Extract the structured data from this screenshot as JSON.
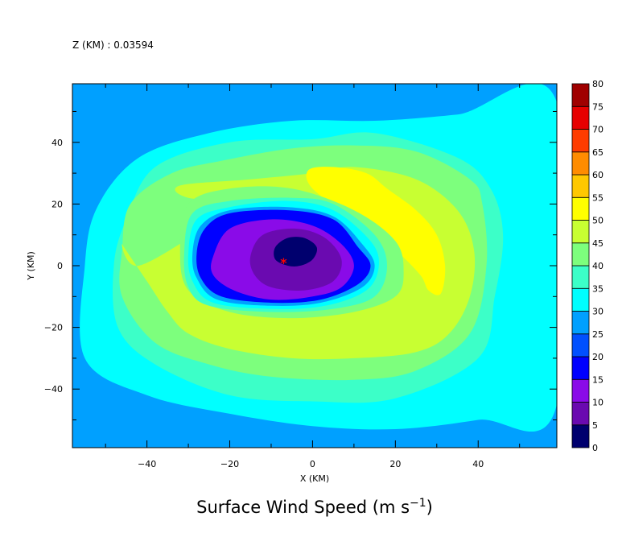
{
  "chart_data": {
    "type": "heatmap",
    "subtype": "filled-contour",
    "header": "Z (KM) : 0.03594",
    "title_text": "Surface Wind Speed (m s",
    "title_sup": "−1",
    "title_close": ")",
    "xlabel": "X (KM)",
    "ylabel": "Y (KM)",
    "xlim": [
      -58,
      59
    ],
    "ylim": [
      -59,
      59
    ],
    "xticks_major": [
      -40,
      -20,
      0,
      20,
      40
    ],
    "xticks_minor": [
      -50,
      -30,
      -10,
      10,
      30,
      50
    ],
    "yticks_major": [
      -40,
      -20,
      0,
      20,
      40
    ],
    "yticks_minor": [
      -50,
      -30,
      -10,
      10,
      30,
      50
    ],
    "x_tick_labels": [
      "−40",
      "−20",
      "0",
      "20",
      "40"
    ],
    "y_tick_labels": [
      "−40",
      "−20",
      "0",
      "20",
      "40"
    ],
    "colorbar": {
      "levels": [
        0,
        5,
        10,
        15,
        20,
        25,
        30,
        35,
        40,
        45,
        50,
        55,
        60,
        65,
        70,
        75,
        80
      ],
      "level_labels": [
        "0",
        "5",
        "10",
        "15",
        "20",
        "25",
        "30",
        "35",
        "40",
        "45",
        "50",
        "55",
        "60",
        "65",
        "70",
        "75",
        "80"
      ],
      "colors": [
        "#00006e",
        "#6a0ab0",
        "#8a0be8",
        "#0000ff",
        "#0050ff",
        "#00a0ff",
        "#00ffff",
        "#3cffc8",
        "#7dff7d",
        "#c8ff32",
        "#ffff00",
        "#ffc800",
        "#ff8c00",
        "#ff3c00",
        "#e60000",
        "#a00000"
      ]
    },
    "center_marker": {
      "x": -7,
      "y": 1,
      "symbol": "*",
      "color": "#ff0000"
    },
    "contours": [
      {
        "level": 20,
        "pts": [
          [
            -58,
            59
          ],
          [
            -48,
            59
          ],
          [
            -57,
            42
          ],
          [
            -58,
            40
          ]
        ]
      },
      {
        "level": 25,
        "pts": [
          [
            -58,
            59
          ],
          [
            59,
            59
          ],
          [
            59,
            -47
          ],
          [
            40,
            -55
          ],
          [
            20,
            -59
          ],
          [
            -20,
            -59
          ],
          [
            -40,
            -50
          ],
          [
            -58,
            -40
          ]
        ]
      },
      {
        "level": 30,
        "pts": [
          [
            -52,
            19
          ],
          [
            -42,
            35
          ],
          [
            -25,
            43
          ],
          [
            -5,
            47
          ],
          [
            15,
            47
          ],
          [
            35,
            49
          ],
          [
            59,
            53
          ],
          [
            59,
            -45
          ],
          [
            40,
            -50
          ],
          [
            20,
            -53
          ],
          [
            0,
            -52
          ],
          [
            -20,
            -48
          ],
          [
            -40,
            -42
          ],
          [
            -55,
            -30
          ],
          [
            -55,
            0
          ]
        ]
      },
      {
        "level": 35,
        "pts": [
          [
            -45,
            15
          ],
          [
            -38,
            32
          ],
          [
            -20,
            40
          ],
          [
            0,
            41
          ],
          [
            15,
            43
          ],
          [
            35,
            35
          ],
          [
            43,
            25
          ],
          [
            46,
            10
          ],
          [
            44,
            -10
          ],
          [
            40,
            -30
          ],
          [
            20,
            -43
          ],
          [
            0,
            -44
          ],
          [
            -20,
            -42
          ],
          [
            -38,
            -32
          ],
          [
            -47,
            -20
          ],
          [
            -48,
            0
          ]
        ]
      },
      {
        "level": 40,
        "pts": [
          [
            -46,
            5
          ],
          [
            -44,
            20
          ],
          [
            -34,
            30
          ],
          [
            -22,
            34
          ],
          [
            -5,
            38
          ],
          [
            10,
            39
          ],
          [
            25,
            37
          ],
          [
            38,
            28
          ],
          [
            41,
            20
          ],
          [
            42,
            0
          ],
          [
            38,
            -22
          ],
          [
            25,
            -34
          ],
          [
            10,
            -37
          ],
          [
            -10,
            -36
          ],
          [
            -25,
            -32
          ],
          [
            -38,
            -25
          ],
          [
            -46,
            -10
          ]
        ]
      },
      {
        "level": 45,
        "pts": [
          [
            -46,
            7
          ],
          [
            -40,
            -5
          ],
          [
            -35,
            -15
          ],
          [
            -30,
            -22
          ],
          [
            -20,
            -27
          ],
          [
            -5,
            -30
          ],
          [
            10,
            -30
          ],
          [
            25,
            -28
          ],
          [
            33,
            -22
          ],
          [
            38,
            -10
          ],
          [
            39,
            5
          ],
          [
            35,
            18
          ],
          [
            25,
            28
          ],
          [
            10,
            32
          ],
          [
            0,
            30
          ],
          [
            -15,
            28
          ],
          [
            -32,
            26
          ],
          [
            -30,
            22
          ],
          [
            -15,
            20
          ],
          [
            -26,
            12
          ],
          [
            -42,
            0
          ]
        ]
      },
      {
        "level": 50,
        "pts": [
          [
            -1,
            31
          ],
          [
            5,
            32
          ],
          [
            13,
            30
          ],
          [
            18,
            25
          ],
          [
            25,
            18
          ],
          [
            30,
            10
          ],
          [
            32,
            0
          ],
          [
            31,
            -9
          ],
          [
            28,
            -8
          ],
          [
            26,
            -3
          ],
          [
            20,
            5
          ],
          [
            10,
            15
          ],
          [
            0,
            25
          ]
        ]
      },
      {
        "level": 40,
        "pts": [
          [
            -32,
            5
          ],
          [
            -30,
            20
          ],
          [
            -20,
            25
          ],
          [
            -5,
            25
          ],
          [
            10,
            18
          ],
          [
            20,
            8
          ],
          [
            22,
            -2
          ],
          [
            20,
            -10
          ],
          [
            10,
            -15
          ],
          [
            -5,
            -17
          ],
          [
            -20,
            -15
          ],
          [
            -30,
            -8
          ]
        ]
      },
      {
        "level": 35,
        "pts": [
          [
            -31,
            4
          ],
          [
            -29,
            17
          ],
          [
            -20,
            21
          ],
          [
            -5,
            22
          ],
          [
            5,
            20
          ],
          [
            15,
            10
          ],
          [
            18,
            0
          ],
          [
            15,
            -10
          ],
          [
            5,
            -14
          ],
          [
            -10,
            -15
          ],
          [
            -25,
            -13
          ],
          [
            -30,
            -7
          ]
        ]
      },
      {
        "level": 30,
        "pts": [
          [
            -30,
            4
          ],
          [
            -28,
            15
          ],
          [
            -20,
            19
          ],
          [
            -6,
            21
          ],
          [
            5,
            18
          ],
          [
            14,
            8
          ],
          [
            16,
            0
          ],
          [
            13,
            -8
          ],
          [
            3,
            -13
          ],
          [
            -10,
            -14
          ],
          [
            -24,
            -12
          ],
          [
            -29,
            -5
          ]
        ]
      },
      {
        "level": 25,
        "pts": [
          [
            -29,
            4
          ],
          [
            -27,
            13
          ],
          [
            -20,
            18
          ],
          [
            -6,
            19
          ],
          [
            5,
            16
          ],
          [
            12,
            7
          ],
          [
            15,
            0
          ],
          [
            12,
            -7
          ],
          [
            2,
            -12
          ],
          [
            -10,
            -13
          ],
          [
            -23,
            -11
          ],
          [
            -28,
            -4
          ]
        ]
      },
      {
        "level": 15,
        "pts": [
          [
            -28,
            4
          ],
          [
            -26,
            12
          ],
          [
            -20,
            17
          ],
          [
            -6,
            18
          ],
          [
            5,
            15
          ],
          [
            11,
            6
          ],
          [
            14,
            0
          ],
          [
            11,
            -6
          ],
          [
            2,
            -11
          ],
          [
            -10,
            -12
          ],
          [
            -22,
            -10
          ],
          [
            -27,
            -4
          ]
        ]
      },
      {
        "level": 10,
        "pts": [
          [
            -24,
            3
          ],
          [
            -20,
            12
          ],
          [
            -10,
            15
          ],
          [
            0,
            13
          ],
          [
            7,
            7
          ],
          [
            10,
            0
          ],
          [
            7,
            -7
          ],
          [
            0,
            -10
          ],
          [
            -10,
            -11
          ],
          [
            -19,
            -8
          ],
          [
            -24,
            -3
          ]
        ]
      },
      {
        "level": 5,
        "pts": [
          [
            -15,
            3
          ],
          [
            -12,
            10
          ],
          [
            -4,
            12
          ],
          [
            3,
            9
          ],
          [
            7,
            2
          ],
          [
            5,
            -5
          ],
          [
            -2,
            -8
          ],
          [
            -10,
            -7
          ],
          [
            -14,
            -3
          ]
        ]
      },
      {
        "level": 0,
        "pts": [
          [
            -9,
            6
          ],
          [
            -6,
            9
          ],
          [
            -2,
            9
          ],
          [
            1,
            6
          ],
          [
            0,
            2
          ],
          [
            -3,
            0
          ],
          [
            -6,
            0
          ],
          [
            -9,
            2
          ]
        ]
      }
    ]
  }
}
